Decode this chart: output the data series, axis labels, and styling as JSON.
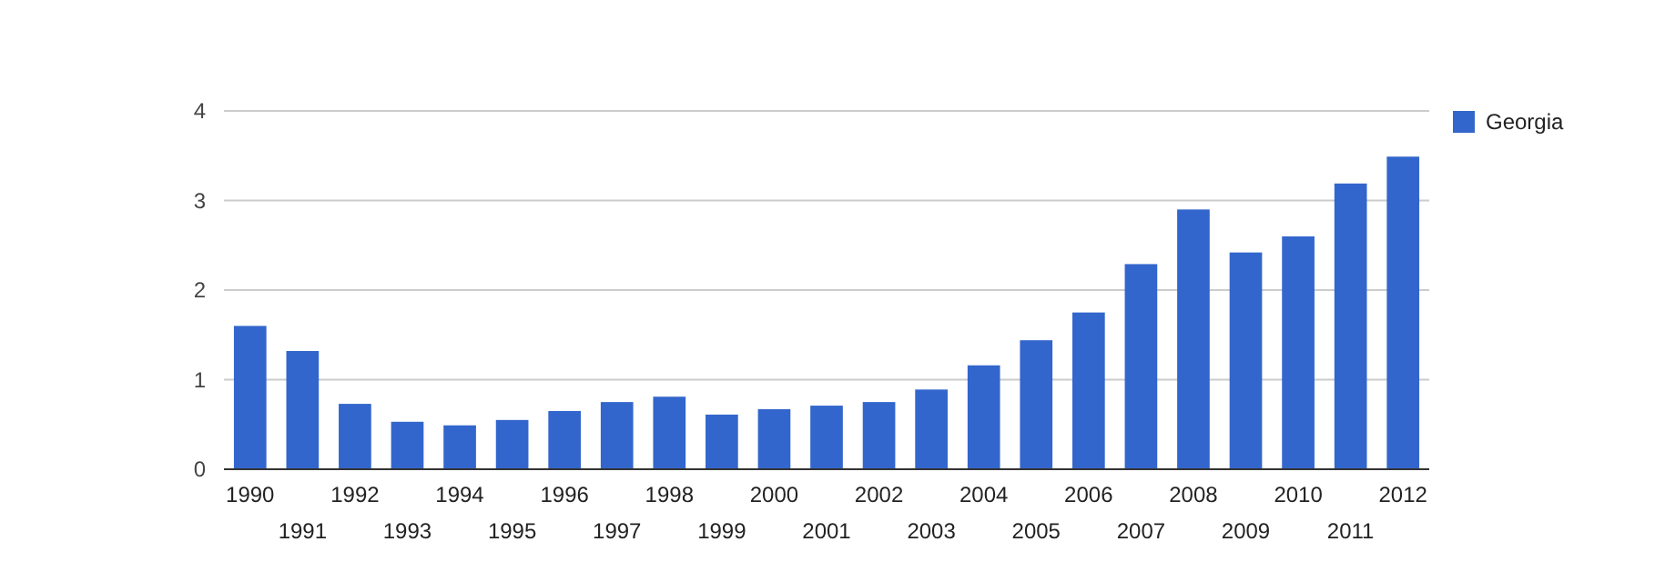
{
  "chart_data": {
    "type": "bar",
    "categories": [
      "1990",
      "1991",
      "1992",
      "1993",
      "1994",
      "1995",
      "1996",
      "1997",
      "1998",
      "1999",
      "2000",
      "2001",
      "2002",
      "2003",
      "2004",
      "2005",
      "2006",
      "2007",
      "2008",
      "2009",
      "2010",
      "2011",
      "2012"
    ],
    "series": [
      {
        "name": "Georgia",
        "color": "#3366cc",
        "values": [
          1.6,
          1.32,
          0.73,
          0.53,
          0.49,
          0.55,
          0.65,
          0.75,
          0.81,
          0.61,
          0.67,
          0.71,
          0.75,
          0.89,
          1.16,
          1.44,
          1.75,
          2.29,
          2.9,
          2.42,
          2.6,
          3.19,
          3.49
        ]
      }
    ],
    "ylim": [
      0,
      4
    ],
    "yticks": [
      0,
      1,
      2,
      3,
      4
    ],
    "grid": "y",
    "legend": "right"
  }
}
